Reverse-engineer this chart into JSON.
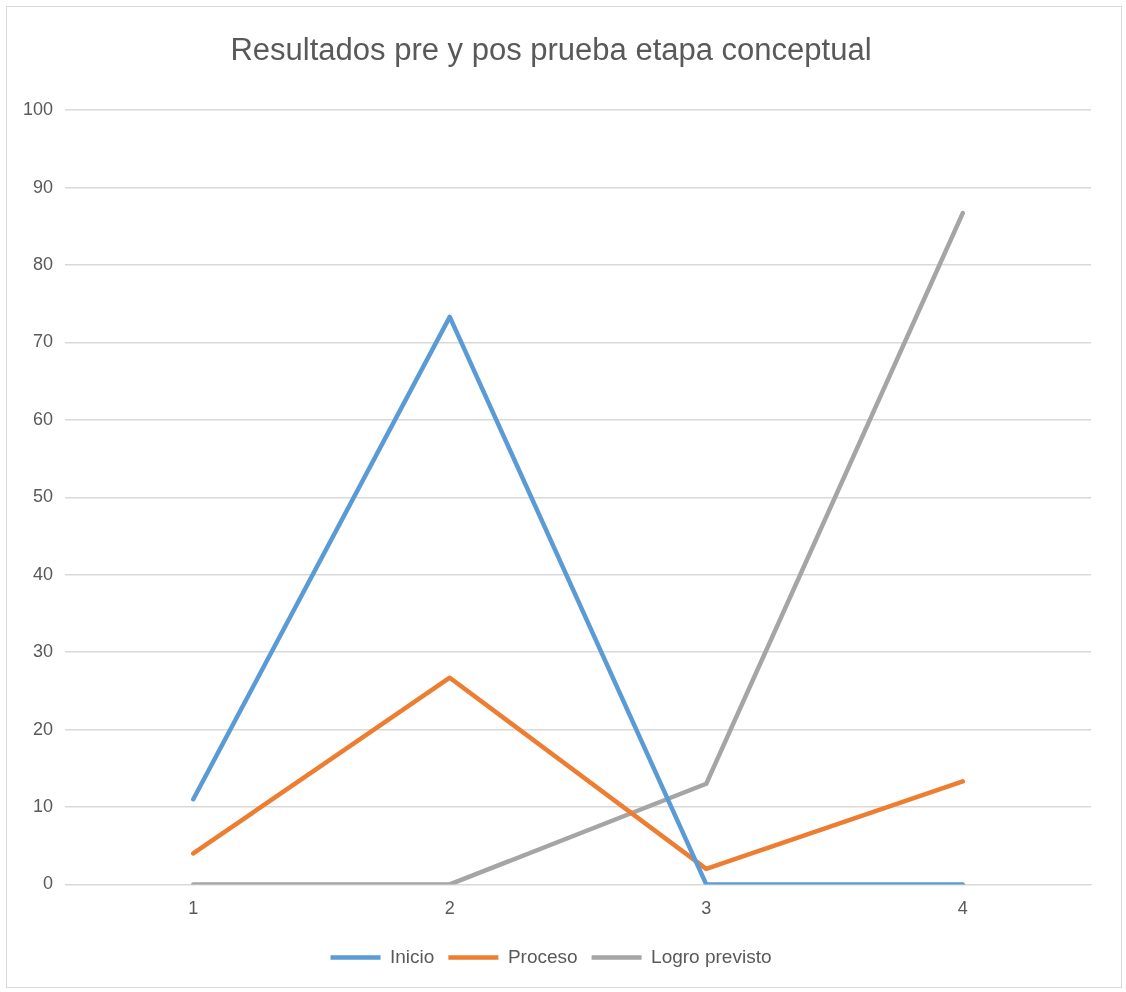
{
  "chart_data": {
    "type": "line",
    "title": "Resultados pre y pos prueba etapa conceptual",
    "categories": [
      "1",
      "2",
      "3",
      "4"
    ],
    "series": [
      {
        "name": "Inicio",
        "color": "#5b9bd5",
        "values": [
          11,
          73.3,
          0,
          0
        ]
      },
      {
        "name": "Proceso",
        "color": "#ed7d31",
        "values": [
          4,
          26.7,
          2,
          13.3
        ]
      },
      {
        "name": "Logro previsto",
        "color": "#a5a5a5",
        "values": [
          0,
          0,
          13,
          86.7
        ]
      }
    ],
    "ylim": [
      0,
      100
    ],
    "yticks": [
      0,
      10,
      20,
      30,
      40,
      50,
      60,
      70,
      80,
      90,
      100
    ],
    "grid": "y",
    "legend": "bottom",
    "marker": "none",
    "line_style": "solid"
  }
}
